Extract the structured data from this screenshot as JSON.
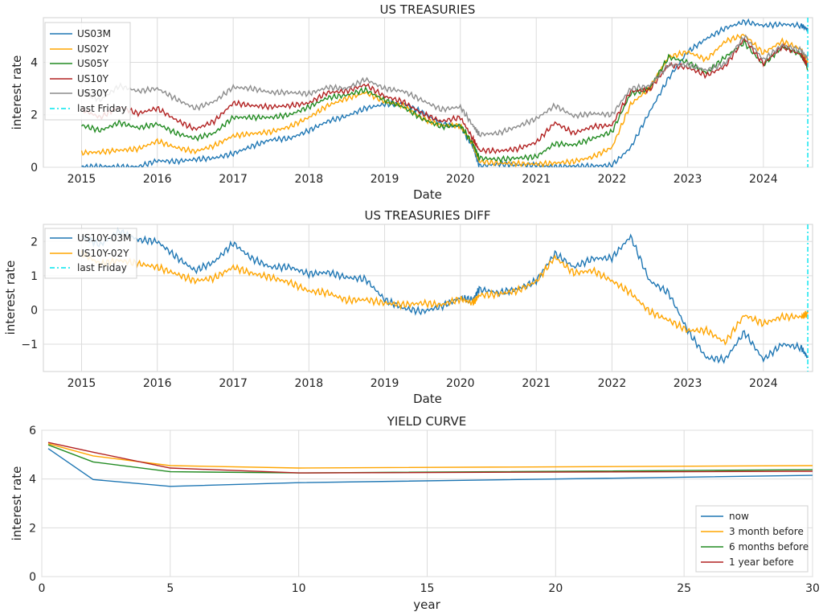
{
  "chart_data": [
    {
      "type": "line",
      "title": "US TREASURIES",
      "xlabel": "Date",
      "ylabel": "interest rate",
      "xlim": [
        "2014-07-01",
        "2024-08-25"
      ],
      "ylim": [
        0,
        5.7
      ],
      "x_ticks": [
        "2015",
        "2016",
        "2017",
        "2018",
        "2019",
        "2020",
        "2021",
        "2022",
        "2023",
        "2024"
      ],
      "y_ticks": [
        0,
        2,
        4
      ],
      "grid": true,
      "legend_position": "top-left",
      "x": [
        "2015-01-01",
        "2015-04-01",
        "2015-07-01",
        "2015-10-01",
        "2016-01-01",
        "2016-04-01",
        "2016-07-01",
        "2016-10-01",
        "2017-01-01",
        "2017-04-01",
        "2017-07-01",
        "2017-10-01",
        "2018-01-01",
        "2018-04-01",
        "2018-07-01",
        "2018-10-01",
        "2019-01-01",
        "2019-04-01",
        "2019-07-01",
        "2019-10-01",
        "2020-01-01",
        "2020-03-01",
        "2020-04-01",
        "2020-07-01",
        "2020-10-01",
        "2021-01-01",
        "2021-04-01",
        "2021-07-01",
        "2021-10-01",
        "2022-01-01",
        "2022-04-01",
        "2022-07-01",
        "2022-10-01",
        "2023-01-01",
        "2023-04-01",
        "2023-07-01",
        "2023-10-01",
        "2024-01-01",
        "2024-04-01",
        "2024-07-01",
        "2024-08-02"
      ],
      "series": [
        {
          "name": "US03M",
          "color": "#1f77b4",
          "values": [
            0.03,
            0.03,
            0.02,
            0.02,
            0.25,
            0.22,
            0.3,
            0.35,
            0.52,
            0.8,
            1.05,
            1.1,
            1.4,
            1.75,
            1.95,
            2.25,
            2.4,
            2.42,
            2.1,
            1.65,
            1.55,
            0.8,
            0.05,
            0.12,
            0.09,
            0.08,
            0.02,
            0.05,
            0.05,
            0.08,
            0.75,
            2.1,
            3.4,
            4.4,
            4.9,
            5.3,
            5.55,
            5.4,
            5.45,
            5.4,
            5.25
          ]
        },
        {
          "name": "US02Y",
          "color": "#ffa500",
          "values": [
            0.55,
            0.58,
            0.65,
            0.7,
            1.0,
            0.75,
            0.6,
            0.82,
            1.2,
            1.28,
            1.35,
            1.55,
            1.9,
            2.35,
            2.62,
            2.85,
            2.5,
            2.35,
            1.85,
            1.6,
            1.58,
            0.9,
            0.22,
            0.16,
            0.14,
            0.12,
            0.16,
            0.22,
            0.4,
            0.75,
            2.4,
            3.0,
            4.2,
            4.4,
            4.1,
            4.8,
            5.05,
            4.35,
            4.8,
            4.5,
            3.95
          ]
        },
        {
          "name": "US05Y",
          "color": "#228b22",
          "values": [
            1.6,
            1.4,
            1.7,
            1.5,
            1.65,
            1.3,
            1.1,
            1.3,
            1.9,
            1.9,
            1.9,
            2.0,
            2.3,
            2.65,
            2.75,
            2.95,
            2.55,
            2.3,
            1.85,
            1.55,
            1.6,
            0.9,
            0.35,
            0.3,
            0.35,
            0.4,
            0.9,
            0.85,
            1.1,
            1.35,
            2.8,
            3.0,
            4.2,
            4.0,
            3.6,
            4.2,
            4.75,
            3.9,
            4.6,
            4.3,
            3.75
          ]
        },
        {
          "name": "US10Y",
          "color": "#b22222",
          "values": [
            2.2,
            1.9,
            2.3,
            2.05,
            2.25,
            1.8,
            1.45,
            1.75,
            2.45,
            2.35,
            2.3,
            2.35,
            2.45,
            2.85,
            2.9,
            3.15,
            2.7,
            2.5,
            2.05,
            1.75,
            1.9,
            1.1,
            0.65,
            0.62,
            0.7,
            0.95,
            1.7,
            1.3,
            1.55,
            1.6,
            2.9,
            2.95,
            3.9,
            3.8,
            3.5,
            3.85,
            4.9,
            3.95,
            4.6,
            4.3,
            3.85
          ]
        },
        {
          "name": "US30Y",
          "color": "#8c8c8c",
          "values": [
            2.9,
            2.55,
            3.1,
            2.9,
            3.0,
            2.6,
            2.25,
            2.5,
            3.05,
            3.0,
            2.85,
            2.85,
            2.8,
            3.05,
            3.0,
            3.35,
            3.0,
            2.9,
            2.55,
            2.2,
            2.3,
            1.6,
            1.25,
            1.3,
            1.55,
            1.85,
            2.35,
            1.95,
            2.05,
            2.0,
            3.0,
            3.1,
            3.9,
            3.9,
            3.7,
            3.95,
            5.0,
            4.1,
            4.65,
            4.45,
            4.15
          ]
        }
      ],
      "annotations": [
        {
          "name": "last Friday",
          "x": "2024-08-02",
          "color": "#00e5ee",
          "style": "dash-dot"
        }
      ]
    },
    {
      "type": "line",
      "title": "US TREASURIES DIFF",
      "xlabel": "Date",
      "ylabel": "interest rate",
      "xlim": [
        "2014-07-01",
        "2024-08-25"
      ],
      "ylim": [
        -1.8,
        2.5
      ],
      "x_ticks": [
        "2015",
        "2016",
        "2017",
        "2018",
        "2019",
        "2020",
        "2021",
        "2022",
        "2023",
        "2024"
      ],
      "y_ticks": [
        -1,
        0,
        1,
        2
      ],
      "grid": true,
      "legend_position": "top-left",
      "x": [
        "2015-01-01",
        "2015-04-01",
        "2015-07-01",
        "2015-10-01",
        "2016-01-01",
        "2016-04-01",
        "2016-07-01",
        "2016-10-01",
        "2017-01-01",
        "2017-04-01",
        "2017-07-01",
        "2017-10-01",
        "2018-01-01",
        "2018-04-01",
        "2018-07-01",
        "2018-10-01",
        "2019-01-01",
        "2019-04-01",
        "2019-07-01",
        "2019-10-01",
        "2020-01-01",
        "2020-03-01",
        "2020-04-01",
        "2020-07-01",
        "2020-10-01",
        "2021-01-01",
        "2021-04-01",
        "2021-07-01",
        "2021-10-01",
        "2022-01-01",
        "2022-04-01",
        "2022-07-01",
        "2022-10-01",
        "2023-01-01",
        "2023-04-01",
        "2023-07-01",
        "2023-10-01",
        "2024-01-01",
        "2024-04-01",
        "2024-07-01",
        "2024-08-02"
      ],
      "series": [
        {
          "name": "US10Y-03M",
          "color": "#1f77b4",
          "values": [
            2.15,
            1.9,
            2.3,
            2.05,
            2.0,
            1.55,
            1.15,
            1.4,
            1.95,
            1.5,
            1.25,
            1.25,
            1.05,
            1.1,
            0.95,
            0.9,
            0.3,
            0.05,
            -0.05,
            0.1,
            0.35,
            0.3,
            0.6,
            0.5,
            0.6,
            0.85,
            1.65,
            1.25,
            1.5,
            1.52,
            2.15,
            0.85,
            0.5,
            -0.6,
            -1.4,
            -1.45,
            -0.65,
            -1.45,
            -1.0,
            -1.1,
            -1.4
          ]
        },
        {
          "name": "US10Y-02Y",
          "color": "#ffa500",
          "values": [
            1.65,
            1.35,
            1.45,
            1.35,
            1.25,
            1.05,
            0.85,
            0.93,
            1.25,
            1.07,
            0.95,
            0.8,
            0.55,
            0.5,
            0.28,
            0.3,
            0.2,
            0.15,
            0.2,
            0.15,
            0.32,
            0.2,
            0.43,
            0.46,
            0.56,
            0.83,
            1.54,
            1.08,
            1.15,
            0.85,
            0.5,
            -0.05,
            -0.3,
            -0.6,
            -0.6,
            -0.95,
            -0.15,
            -0.4,
            -0.2,
            -0.2,
            -0.1
          ]
        }
      ],
      "annotations": [
        {
          "name": "last Friday",
          "x": "2024-08-02",
          "color": "#00e5ee",
          "style": "dash-dot"
        }
      ]
    },
    {
      "type": "line",
      "title": "YIELD CURVE",
      "xlabel": "year",
      "ylabel": "interest rate",
      "xlim": [
        0,
        30
      ],
      "ylim": [
        0,
        6
      ],
      "x_ticks": [
        0,
        5,
        10,
        15,
        20,
        25,
        30
      ],
      "y_ticks": [
        0,
        2,
        4,
        6
      ],
      "grid": true,
      "legend_position": "bottom-right",
      "x": [
        0.25,
        2,
        5,
        10,
        30
      ],
      "series": [
        {
          "name": "now",
          "color": "#1f77b4",
          "values": [
            5.25,
            3.98,
            3.7,
            3.85,
            4.15
          ]
        },
        {
          "name": "3 month before",
          "color": "#ffa500",
          "values": [
            5.45,
            4.95,
            4.55,
            4.45,
            4.55
          ]
        },
        {
          "name": "6 months before",
          "color": "#228b22",
          "values": [
            5.4,
            4.7,
            4.3,
            4.25,
            4.38
          ]
        },
        {
          "name": "1 year before",
          "color": "#b22222",
          "values": [
            5.5,
            5.1,
            4.45,
            4.25,
            4.32
          ]
        }
      ]
    }
  ]
}
